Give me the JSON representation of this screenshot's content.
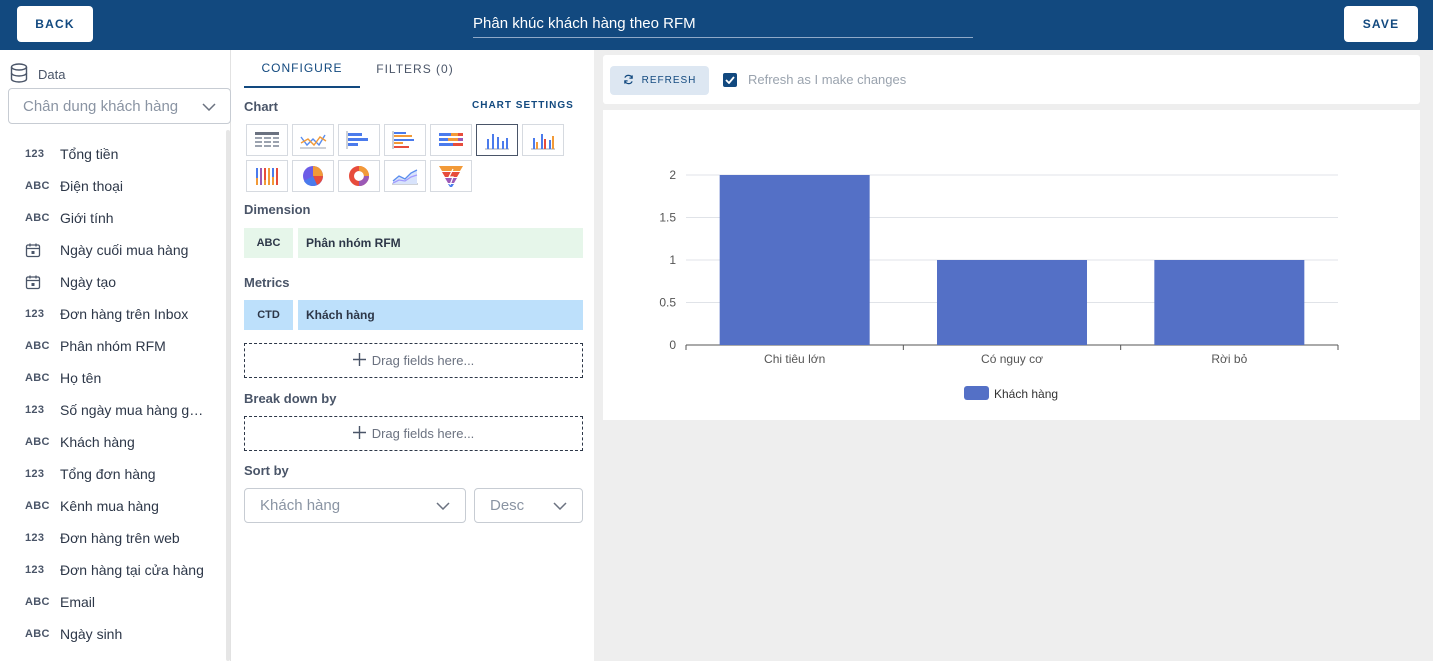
{
  "header": {
    "back_label": "BACK",
    "title": "Phân khúc khách hàng theo RFM",
    "save_label": "SAVE"
  },
  "data_panel": {
    "heading": "Data",
    "source_selected": "Chân dung khách hàng",
    "fields": [
      {
        "type": "123",
        "name": "Tổng tiền"
      },
      {
        "type": "ABC",
        "name": "Điện thoại"
      },
      {
        "type": "ABC",
        "name": "Giới tính"
      },
      {
        "type": "calendar-icon",
        "name": "Ngày cuối mua hàng"
      },
      {
        "type": "calendar-icon",
        "name": "Ngày tạo"
      },
      {
        "type": "123",
        "name": "Đơn hàng trên Inbox"
      },
      {
        "type": "ABC",
        "name": "Phân nhóm RFM"
      },
      {
        "type": "ABC",
        "name": "Họ tên"
      },
      {
        "type": "123",
        "name": "Số ngày mua hàng gần..."
      },
      {
        "type": "ABC",
        "name": "Khách hàng"
      },
      {
        "type": "123",
        "name": "Tổng đơn hàng"
      },
      {
        "type": "ABC",
        "name": "Kênh mua hàng"
      },
      {
        "type": "123",
        "name": "Đơn hàng trên web"
      },
      {
        "type": "123",
        "name": "Đơn hàng tại cửa hàng"
      },
      {
        "type": "ABC",
        "name": "Email"
      },
      {
        "type": "ABC",
        "name": "Ngày sinh"
      }
    ]
  },
  "config": {
    "tabs": {
      "configure": "CONFIGURE",
      "filters": "FILTERS (0)"
    },
    "chart_label": "Chart",
    "chart_settings": "CHART SETTINGS",
    "chart_types": [
      "table",
      "line",
      "bar-horizontal",
      "bar-horizontal-grouped",
      "bar-horizontal-stacked",
      "column",
      "column-grouped",
      "column-stacked",
      "pie",
      "donut",
      "area",
      "funnel"
    ],
    "chart_type_selected": "column",
    "dimension_label": "Dimension",
    "dimension": {
      "tag": "ABC",
      "name": "Phân nhóm RFM"
    },
    "metrics_label": "Metrics",
    "metric": {
      "tag": "CTD",
      "name": "Khách hàng"
    },
    "dropzone_text": "Drag fields here...",
    "breakdown_label": "Break down by",
    "sort_label": "Sort by",
    "sort_field": "Khách hàng",
    "sort_order": "Desc"
  },
  "preview": {
    "refresh_label": "REFRESH",
    "refresh_checked": true,
    "refresh_auto_label": "Refresh as I make changes"
  },
  "colors": {
    "header": "#12497f",
    "bar": "#5470c6"
  },
  "chart_data": {
    "type": "bar",
    "categories": [
      "Chi tiêu lớn",
      "Có nguy cơ",
      "Rời bỏ"
    ],
    "series": [
      {
        "name": "Khách hàng",
        "values": [
          2,
          1,
          1
        ]
      }
    ],
    "ylim": [
      0,
      2
    ],
    "yticks": [
      "0",
      "0.5",
      "1",
      "1.5",
      "2"
    ],
    "legend": "bottom-center",
    "grid": true
  }
}
